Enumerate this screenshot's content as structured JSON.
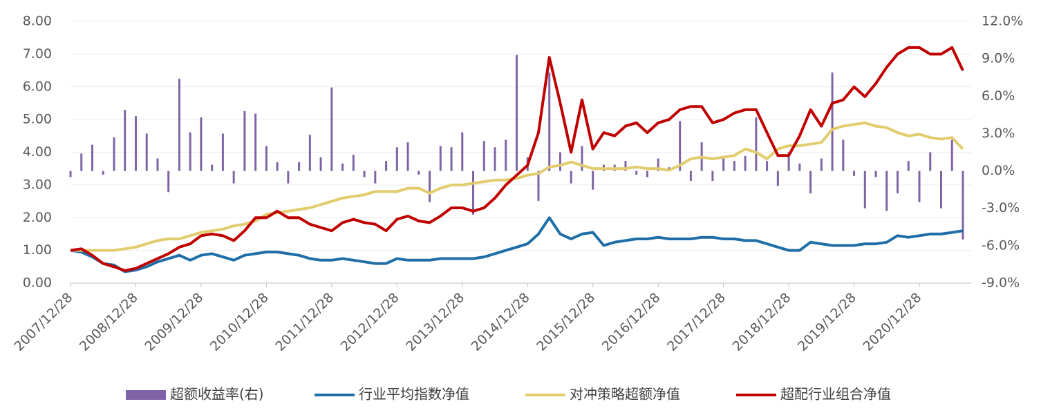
{
  "chart_data": {
    "type": "combo",
    "categories": [
      "2007/12/28",
      null,
      null,
      null,
      null,
      null,
      "2008/12/28",
      null,
      null,
      null,
      null,
      null,
      "2009/12/28",
      null,
      null,
      null,
      null,
      null,
      "2010/12/28",
      null,
      null,
      null,
      null,
      null,
      "2011/12/28",
      null,
      null,
      null,
      null,
      null,
      "2012/12/28",
      null,
      null,
      null,
      null,
      null,
      "2013/12/28",
      null,
      null,
      null,
      null,
      null,
      "2014/12/28",
      null,
      null,
      null,
      null,
      null,
      "2015/12/28",
      null,
      null,
      null,
      null,
      null,
      "2016/12/28",
      null,
      null,
      null,
      null,
      null,
      "2017/12/28",
      null,
      null,
      null,
      null,
      null,
      "2018/12/28",
      null,
      null,
      null,
      null,
      null,
      "2019/12/28",
      null,
      null,
      null,
      null,
      null,
      "2020/12/28",
      null,
      null,
      null,
      null
    ],
    "series": [
      {
        "name": "超额收益率(右)",
        "type": "bar",
        "axis": "y2",
        "color": "#7f63a6",
        "values": [
          -0.5,
          1.4,
          2.1,
          -0.3,
          2.7,
          4.9,
          4.4,
          3.0,
          1.0,
          -1.7,
          7.4,
          3.1,
          4.3,
          0.5,
          3.0,
          -1.0,
          4.8,
          4.6,
          2.0,
          0.7,
          -1.0,
          0.7,
          2.9,
          1.1,
          6.7,
          0.6,
          1.3,
          -0.5,
          -1.0,
          0.8,
          1.9,
          2.3,
          -0.3,
          -2.5,
          2.0,
          1.9,
          3.1,
          -3.5,
          2.4,
          1.9,
          2.5,
          9.3,
          1.1,
          -2.4,
          7.9,
          1.5,
          -1.0,
          2.0,
          -1.5,
          0.5,
          0.5,
          0.8,
          -0.3,
          -0.5,
          1.0,
          0.3,
          4.0,
          -0.8,
          2.3,
          -0.8,
          1.0,
          0.8,
          1.2,
          4.3,
          0.8,
          -1.2,
          1.5,
          0.6,
          -1.8,
          1.0,
          7.9,
          2.5,
          -0.4,
          -3.0,
          -0.5,
          -3.2,
          -1.8,
          0.8,
          -2.5,
          1.5,
          -3.0,
          2.5,
          -5.5
        ]
      },
      {
        "name": "行业平均指数净值",
        "type": "line",
        "color": "#1f6ea8",
        "values": [
          1.0,
          0.95,
          0.8,
          0.6,
          0.55,
          0.35,
          0.4,
          0.5,
          0.65,
          0.75,
          0.85,
          0.7,
          0.85,
          0.9,
          0.8,
          0.7,
          0.85,
          0.9,
          0.95,
          0.95,
          0.9,
          0.85,
          0.75,
          0.7,
          0.7,
          0.75,
          0.7,
          0.65,
          0.6,
          0.6,
          0.75,
          0.7,
          0.7,
          0.7,
          0.75,
          0.75,
          0.75,
          0.75,
          0.8,
          0.9,
          1.0,
          1.1,
          1.2,
          1.5,
          2.0,
          1.5,
          1.35,
          1.5,
          1.55,
          1.15,
          1.25,
          1.3,
          1.35,
          1.35,
          1.4,
          1.35,
          1.35,
          1.35,
          1.4,
          1.4,
          1.35,
          1.35,
          1.3,
          1.3,
          1.2,
          1.1,
          1.0,
          1.0,
          1.25,
          1.2,
          1.15,
          1.15,
          1.15,
          1.2,
          1.2,
          1.25,
          1.45,
          1.4,
          1.45,
          1.5,
          1.5,
          1.55,
          1.6
        ]
      },
      {
        "name": "对冲策略超额净值",
        "type": "line",
        "color": "#e2cc6e",
        "values": [
          1.0,
          1.0,
          1.0,
          1.0,
          1.0,
          1.05,
          1.1,
          1.2,
          1.3,
          1.35,
          1.35,
          1.45,
          1.55,
          1.6,
          1.65,
          1.75,
          1.8,
          1.9,
          2.1,
          2.15,
          2.2,
          2.25,
          2.3,
          2.4,
          2.5,
          2.6,
          2.65,
          2.7,
          2.8,
          2.8,
          2.8,
          2.9,
          2.9,
          2.75,
          2.9,
          3.0,
          3.0,
          3.05,
          3.1,
          3.15,
          3.15,
          3.2,
          3.3,
          3.35,
          3.55,
          3.6,
          3.7,
          3.6,
          3.5,
          3.5,
          3.5,
          3.5,
          3.55,
          3.5,
          3.5,
          3.45,
          3.6,
          3.8,
          3.85,
          3.8,
          3.85,
          3.9,
          4.1,
          4.0,
          3.8,
          4.1,
          4.2,
          4.2,
          4.25,
          4.3,
          4.7,
          4.8,
          4.85,
          4.9,
          4.8,
          4.75,
          4.6,
          4.5,
          4.55,
          4.45,
          4.4,
          4.45,
          4.1
        ]
      },
      {
        "name": "超配行业组合净值",
        "type": "line",
        "color": "#c00000",
        "values": [
          1.0,
          1.05,
          0.85,
          0.6,
          0.5,
          0.38,
          0.45,
          0.6,
          0.75,
          0.9,
          1.1,
          1.2,
          1.45,
          1.5,
          1.45,
          1.3,
          1.6,
          2.0,
          2.0,
          2.2,
          2.0,
          2.0,
          1.8,
          1.7,
          1.6,
          1.85,
          1.95,
          1.85,
          1.8,
          1.6,
          1.95,
          2.05,
          1.9,
          1.85,
          2.05,
          2.3,
          2.3,
          2.2,
          2.3,
          2.6,
          3.0,
          3.3,
          3.6,
          4.6,
          6.9,
          5.5,
          4.0,
          5.6,
          4.1,
          4.6,
          4.5,
          4.8,
          4.9,
          4.6,
          4.9,
          5.0,
          5.3,
          5.4,
          5.4,
          4.9,
          5.0,
          5.2,
          5.3,
          5.3,
          4.6,
          3.9,
          3.9,
          4.5,
          5.3,
          4.8,
          5.5,
          5.6,
          6.0,
          5.7,
          6.1,
          6.6,
          7.0,
          7.2,
          7.2,
          7.0,
          7.0,
          7.2,
          6.5
        ]
      }
    ],
    "ylim": [
      0,
      8
    ],
    "yticks": [
      {
        "value": 0,
        "label": "0.00"
      },
      {
        "value": 1,
        "label": "1.00"
      },
      {
        "value": 2,
        "label": "2.00"
      },
      {
        "value": 3,
        "label": "3.00"
      },
      {
        "value": 4,
        "label": "4.00"
      },
      {
        "value": 5,
        "label": "5.00"
      },
      {
        "value": 6,
        "label": "6.00"
      },
      {
        "value": 7,
        "label": "7.00"
      },
      {
        "value": 8,
        "label": "8.00"
      }
    ],
    "y2lim": [
      -9,
      12
    ],
    "y2ticks": [
      {
        "value": -9,
        "label": "-9.0%"
      },
      {
        "value": -6,
        "label": "-6.0%"
      },
      {
        "value": -3,
        "label": "-3.0%"
      },
      {
        "value": 0,
        "label": "0.0%"
      },
      {
        "value": 3,
        "label": "3.0%"
      },
      {
        "value": 6,
        "label": "6.0%"
      },
      {
        "value": 9,
        "label": "9.0%"
      },
      {
        "value": 12,
        "label": "12.0%"
      }
    ],
    "grid": true,
    "legend": "bottom"
  }
}
